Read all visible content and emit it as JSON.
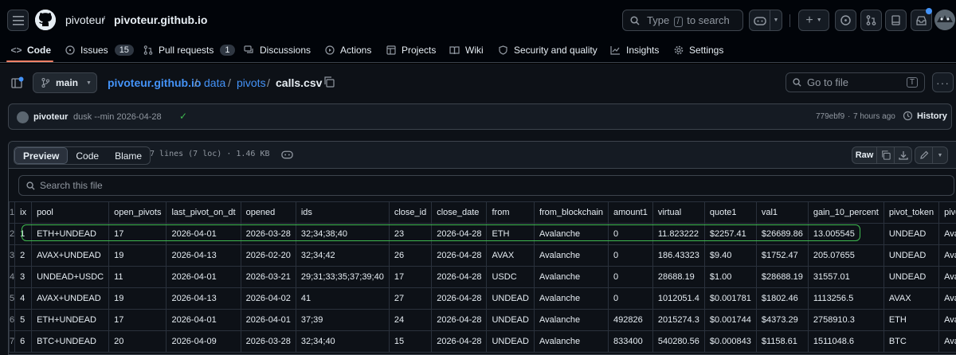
{
  "header": {
    "owner": "pivoteur",
    "repo": "pivoteur.github.io",
    "search_prefix": "Type",
    "search_key": "/",
    "search_suffix": "to search"
  },
  "nav": {
    "tabs": [
      {
        "label": "Code",
        "icon": "code-icon"
      },
      {
        "label": "Issues",
        "count": "15",
        "icon": "issue-icon"
      },
      {
        "label": "Pull requests",
        "count": "1",
        "icon": "pull-request-icon"
      },
      {
        "label": "Discussions",
        "icon": "discussion-icon"
      },
      {
        "label": "Actions",
        "icon": "play-icon"
      },
      {
        "label": "Projects",
        "icon": "table-icon"
      },
      {
        "label": "Wiki",
        "icon": "book-icon"
      },
      {
        "label": "Security and quality",
        "icon": "shield-icon"
      },
      {
        "label": "Insights",
        "icon": "graph-icon"
      },
      {
        "label": "Settings",
        "icon": "gear-icon"
      }
    ]
  },
  "file": {
    "branch": "main",
    "breadcrumb": [
      "pivoteur.github.io",
      "data",
      "pivots",
      "calls.csv"
    ],
    "goto_placeholder": "Go to file",
    "goto_key": "T"
  },
  "commit": {
    "author": "pivoteur",
    "message": "dusk --min 2026-04-28",
    "sha": "779ebf9",
    "time": "7 hours ago",
    "history_label": "History"
  },
  "viewer": {
    "modes": [
      "Preview",
      "Code",
      "Blame"
    ],
    "active_mode": "Preview",
    "stats": "7 lines (7 loc) · 1.46 KB",
    "raw_label": "Raw",
    "search_placeholder": "Search this file"
  },
  "table": {
    "line_numbers": [
      "1",
      "2",
      "3",
      "4",
      "5",
      "6",
      "7"
    ],
    "columns": [
      "ix",
      "pool",
      "open_pivots",
      "last_pivot_on_dt",
      "opened",
      "ids",
      "close_id",
      "close_date",
      "from",
      "from_blockchain",
      "amount1",
      "virtual",
      "quote1",
      "val1",
      "gain_10_percent",
      "pivot_token",
      "pivot_blo"
    ],
    "rows": [
      [
        "1",
        "ETH+UNDEAD",
        "17",
        "2026-04-01",
        "2026-03-28",
        "32;34;38;40",
        "23",
        "2026-04-28",
        "ETH",
        "Avalanche",
        "0",
        "11.823222",
        "$2257.41",
        "$26689.86",
        "13.005545",
        "UNDEAD",
        "Avalanche"
      ],
      [
        "2",
        "AVAX+UNDEAD",
        "19",
        "2026-04-13",
        "2026-02-20",
        "32;34;42",
        "26",
        "2026-04-28",
        "AVAX",
        "Avalanche",
        "0",
        "186.43323",
        "$9.40",
        "$1752.47",
        "205.07655",
        "UNDEAD",
        "Avalanche"
      ],
      [
        "3",
        "UNDEAD+USDC",
        "11",
        "2026-04-01",
        "2026-03-21",
        "29;31;33;35;37;39;40",
        "17",
        "2026-04-28",
        "USDC",
        "Avalanche",
        "0",
        "28688.19",
        "$1.00",
        "$28688.19",
        "31557.01",
        "UNDEAD",
        "Avalanche"
      ],
      [
        "4",
        "AVAX+UNDEAD",
        "19",
        "2026-04-13",
        "2026-04-02",
        "41",
        "27",
        "2026-04-28",
        "UNDEAD",
        "Avalanche",
        "0",
        "1012051.4",
        "$0.001781",
        "$1802.46",
        "1113256.5",
        "AVAX",
        "Avalanche"
      ],
      [
        "5",
        "ETH+UNDEAD",
        "17",
        "2026-04-01",
        "2026-04-01",
        "37;39",
        "24",
        "2026-04-28",
        "UNDEAD",
        "Avalanche",
        "492826",
        "2015274.3",
        "$0.001744",
        "$4373.29",
        "2758910.3",
        "ETH",
        "Avalanche"
      ],
      [
        "6",
        "BTC+UNDEAD",
        "20",
        "2026-04-09",
        "2026-03-28",
        "32;34;40",
        "15",
        "2026-04-28",
        "UNDEAD",
        "Avalanche",
        "833400",
        "540280.56",
        "$0.000843",
        "$1158.61",
        "1511048.6",
        "BTC",
        "Avalanche"
      ]
    ]
  },
  "colors": {
    "accent": "#4493f8",
    "tab_underline": "#f78166",
    "highlight": "#3fb950"
  }
}
